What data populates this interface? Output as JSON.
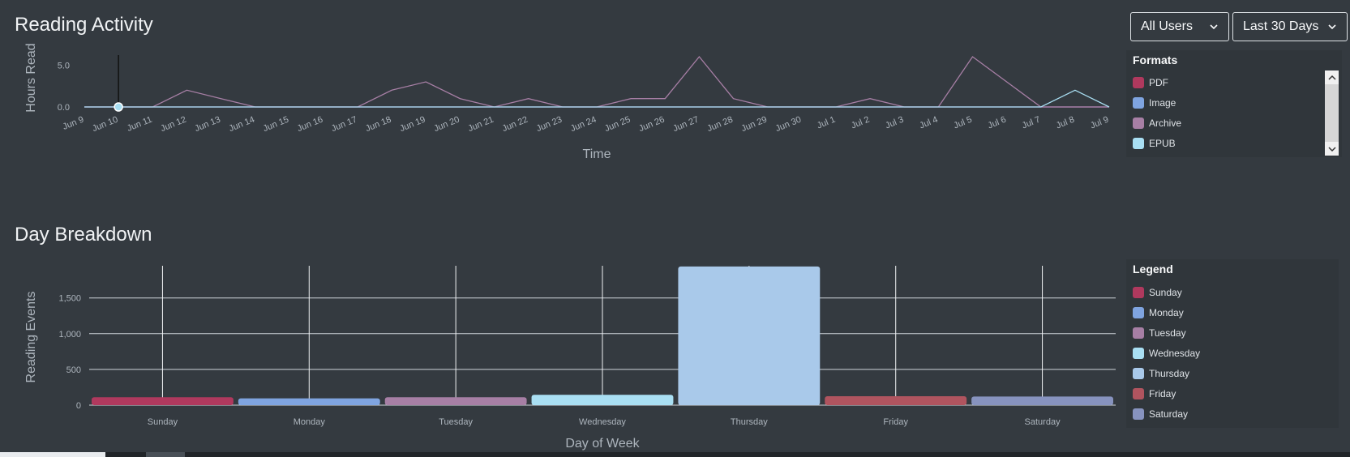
{
  "reading_activity": {
    "title": "Reading Activity",
    "filters": {
      "users": "All Users",
      "range": "Last 30 Days"
    },
    "y_label": "Hours Read",
    "x_label": "Time",
    "y_ticks": [
      "0.0",
      "5.0"
    ],
    "dates": [
      "Jun 9",
      "Jun 10",
      "Jun 11",
      "Jun 12",
      "Jun 13",
      "Jun 14",
      "Jun 15",
      "Jun 16",
      "Jun 17",
      "Jun 18",
      "Jun 19",
      "Jun 20",
      "Jun 21",
      "Jun 22",
      "Jun 23",
      "Jun 24",
      "Jun 25",
      "Jun 26",
      "Jun 27",
      "Jun 28",
      "Jun 29",
      "Jun 30",
      "Jul 1",
      "Jul 2",
      "Jul 3",
      "Jul 4",
      "Jul 5",
      "Jul 6",
      "Jul 7",
      "Jul 8",
      "Jul 9"
    ],
    "legend": {
      "title": "Formats",
      "items": [
        {
          "label": "PDF",
          "color": "#b0395e"
        },
        {
          "label": "Image",
          "color": "#7fa4e0"
        },
        {
          "label": "Archive",
          "color": "#a77fa5"
        },
        {
          "label": "EPUB",
          "color": "#a9dff3"
        }
      ]
    }
  },
  "day_breakdown": {
    "title": "Day Breakdown",
    "y_label": "Reading Events",
    "x_label": "Day of Week",
    "legend": {
      "title": "Legend",
      "items": [
        {
          "label": "Sunday",
          "color": "#b0395e"
        },
        {
          "label": "Monday",
          "color": "#7fa4e0"
        },
        {
          "label": "Tuesday",
          "color": "#a77fa5"
        },
        {
          "label": "Wednesday",
          "color": "#a9dff3"
        },
        {
          "label": "Thursday",
          "color": "#a9c9ea"
        },
        {
          "label": "Friday",
          "color": "#b0545f"
        },
        {
          "label": "Saturday",
          "color": "#8793bf"
        }
      ]
    }
  },
  "chart_data": [
    {
      "type": "line",
      "title": "Reading Activity",
      "xlabel": "Time",
      "ylabel": "Hours Read",
      "x": [
        "Jun 9",
        "Jun 10",
        "Jun 11",
        "Jun 12",
        "Jun 13",
        "Jun 14",
        "Jun 15",
        "Jun 16",
        "Jun 17",
        "Jun 18",
        "Jun 19",
        "Jun 20",
        "Jun 21",
        "Jun 22",
        "Jun 23",
        "Jun 24",
        "Jun 25",
        "Jun 26",
        "Jun 27",
        "Jun 28",
        "Jun 29",
        "Jun 30",
        "Jul 1",
        "Jul 2",
        "Jul 3",
        "Jul 4",
        "Jul 5",
        "Jul 6",
        "Jul 7",
        "Jul 8",
        "Jul 9"
      ],
      "ylim": [
        0,
        6
      ],
      "y_ticks": [
        0,
        5
      ],
      "series": [
        {
          "name": "PDF",
          "color": "#b0395e",
          "values": [
            0,
            0,
            0,
            0,
            0,
            0,
            0,
            0,
            0,
            0,
            0,
            0,
            0,
            0,
            0,
            0,
            0,
            0,
            0,
            0,
            0,
            0,
            0,
            0,
            0,
            0,
            0,
            0,
            0,
            0,
            0
          ]
        },
        {
          "name": "Image",
          "color": "#7fa4e0",
          "values": [
            0,
            0,
            0,
            0,
            0,
            0,
            0,
            0,
            0,
            0,
            0,
            0,
            0,
            0,
            0,
            0,
            0,
            0,
            0,
            0,
            0,
            0,
            0,
            0,
            0,
            0,
            0,
            0,
            0,
            0,
            0
          ]
        },
        {
          "name": "Archive",
          "color": "#a77fa5",
          "values": [
            0,
            0,
            0,
            2,
            1,
            0,
            0,
            0,
            0,
            2,
            3,
            1,
            0,
            1,
            0,
            0,
            1,
            1,
            6,
            1,
            0,
            0,
            0,
            1,
            0,
            0,
            6,
            3,
            0,
            0,
            0
          ]
        },
        {
          "name": "EPUB",
          "color": "#a9dff3",
          "values": [
            0,
            0,
            0,
            0,
            0,
            0,
            0,
            0,
            0,
            0,
            0,
            0,
            0,
            0,
            0,
            0,
            0,
            0,
            0,
            0,
            0,
            0,
            0,
            0,
            0,
            0,
            0,
            0,
            0,
            2,
            0
          ]
        }
      ],
      "highlight_point": "Jun 10"
    },
    {
      "type": "bar",
      "title": "Day Breakdown",
      "xlabel": "Day of Week",
      "ylabel": "Reading Events",
      "categories": [
        "Sunday",
        "Monday",
        "Tuesday",
        "Wednesday",
        "Thursday",
        "Friday",
        "Saturday"
      ],
      "values": [
        110,
        95,
        110,
        145,
        1940,
        125,
        120
      ],
      "colors": [
        "#b0395e",
        "#7fa4e0",
        "#a77fa5",
        "#a9dff3",
        "#a9c9ea",
        "#b0545f",
        "#8793bf"
      ],
      "ylim": [
        0,
        1950
      ],
      "y_ticks": [
        0,
        500,
        1000,
        1500
      ],
      "y_tick_labels": [
        "0",
        "500",
        "1,000",
        "1,500"
      ]
    }
  ]
}
